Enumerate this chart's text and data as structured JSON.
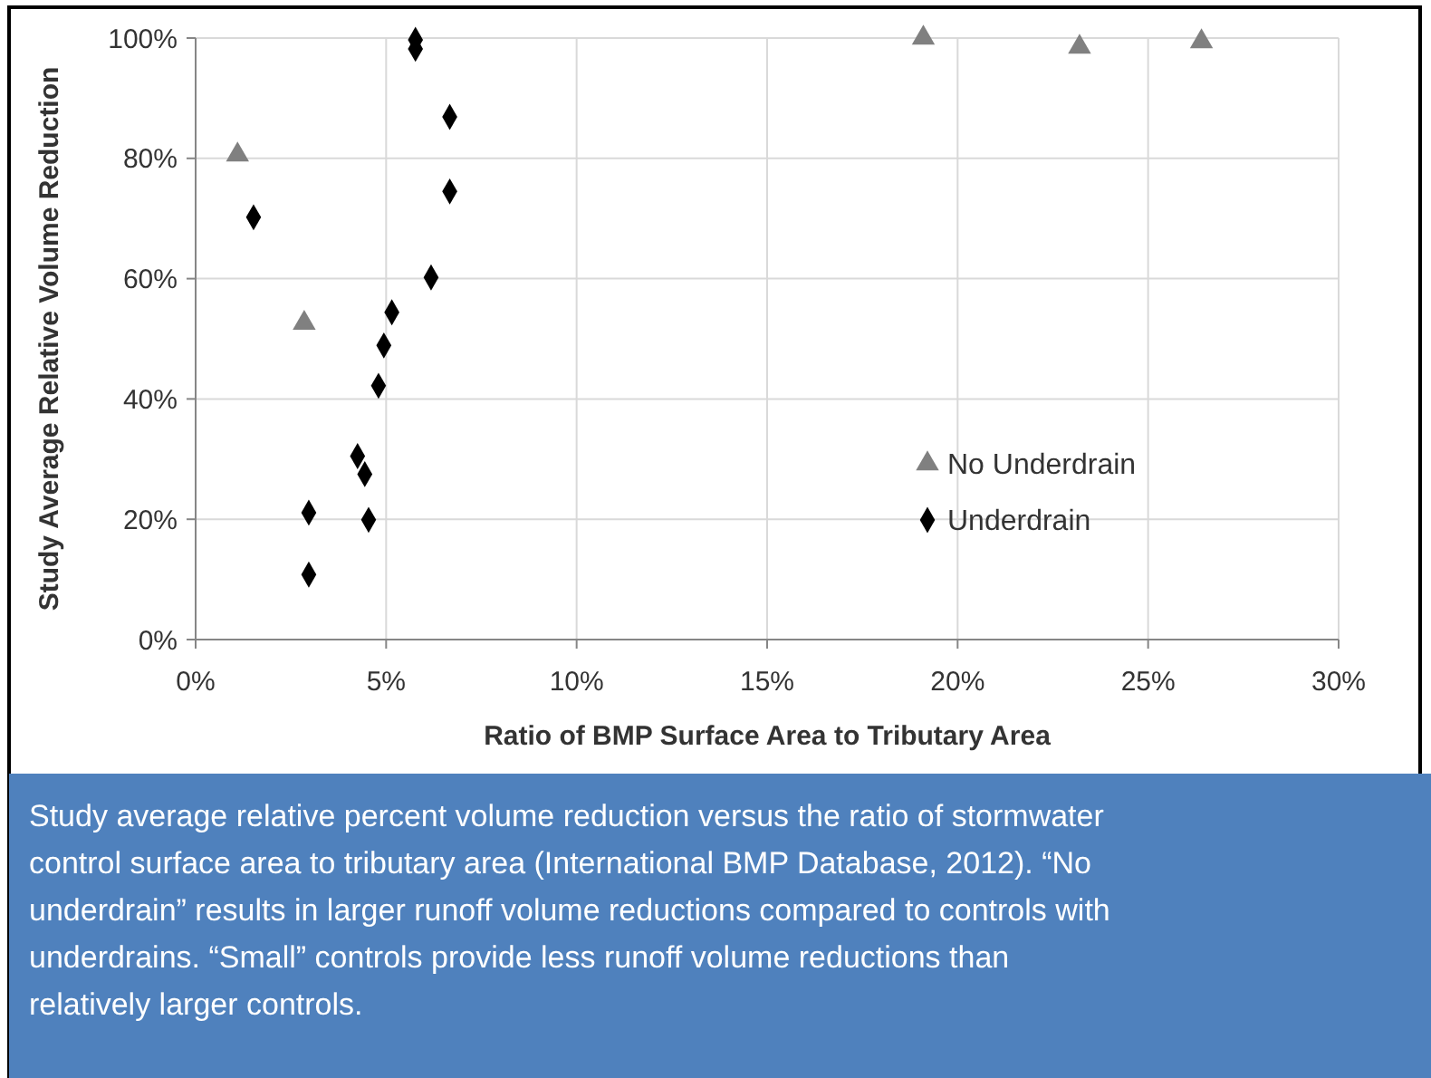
{
  "chart_data": {
    "type": "scatter",
    "xlabel": "Ratio of BMP Surface Area to Tributary Area",
    "ylabel": "Study Average Relative Volume Reduction",
    "xlim": [
      0,
      30
    ],
    "xticks": [
      {
        "value": 0,
        "label": "0%"
      },
      {
        "value": 5,
        "label": "5%"
      },
      {
        "value": 10,
        "label": "10%"
      },
      {
        "value": 15,
        "label": "15%"
      },
      {
        "value": 20,
        "label": "20%"
      },
      {
        "value": 25,
        "label": "25%"
      },
      {
        "value": 30,
        "label": "30%"
      }
    ],
    "ylim": [
      0,
      100
    ],
    "yticks": [
      {
        "value": 0,
        "label": "0%"
      },
      {
        "value": 20,
        "label": "20%"
      },
      {
        "value": 40,
        "label": "40%"
      },
      {
        "value": 60,
        "label": "60%"
      },
      {
        "value": 80,
        "label": "80%"
      },
      {
        "value": 100,
        "label": "100%"
      }
    ],
    "grid": true,
    "legend": "right",
    "series": [
      {
        "name": "No Underdrain",
        "color": "#808080",
        "marker": "triangle",
        "x": [
          1.1,
          2.85,
          19.1,
          23.2,
          26.4
        ],
        "values": [
          80.6,
          52.6,
          100,
          98.5,
          99.4
        ]
      },
      {
        "name": "Underdrain",
        "color": "#000000",
        "marker": "diamond",
        "x": [
          5.77,
          5.77,
          6.67,
          6.67,
          1.52,
          6.18,
          5.15,
          4.94,
          4.8,
          4.25,
          4.44,
          2.97,
          4.54,
          2.97
        ],
        "values": [
          99.7,
          98.2,
          86.9,
          74.5,
          70.2,
          60.2,
          54.4,
          48.9,
          42.2,
          30.5,
          27.5,
          21.1,
          19.9,
          10.8
        ]
      }
    ],
    "annotations": [
      "Study average relative percent volume reduction versus the ratio of stormwater control surface area to tributary area (International BMP Database, 2012). “No underdrain” results in larger runoff volume reductions compared to controls with underdrains. “Small” controls provide less runoff volume reductions than relatively larger controls."
    ]
  }
}
